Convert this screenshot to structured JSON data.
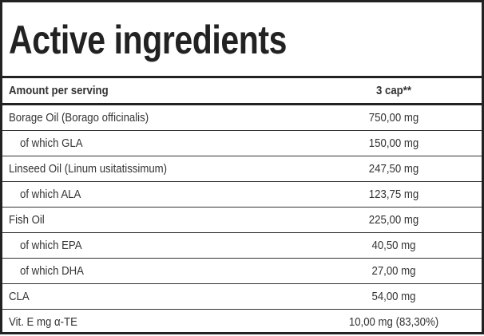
{
  "title": "Active ingredients",
  "header": {
    "label": "Amount per serving",
    "value": "3 cap**"
  },
  "rows": [
    {
      "label": "Borage Oil (Borago officinalis)",
      "value": "750,00 mg",
      "sub": false
    },
    {
      "label": "of which GLA",
      "value": "150,00 mg",
      "sub": true
    },
    {
      "label": "Linseed Oil (Linum usitatissimum)",
      "value": "247,50 mg",
      "sub": false
    },
    {
      "label": "of which ALA",
      "value": "123,75 mg",
      "sub": true
    },
    {
      "label": "Fish Oil",
      "value": "225,00 mg",
      "sub": false
    },
    {
      "label": "of which EPA",
      "value": "40,50 mg",
      "sub": true
    },
    {
      "label": "of which DHA",
      "value": "27,00 mg",
      "sub": true
    },
    {
      "label": "CLA",
      "value": "54,00 mg",
      "sub": false
    },
    {
      "label": "Vit. E mg α-TE",
      "value": "10,00 mg (83,30%)",
      "sub": false
    }
  ]
}
